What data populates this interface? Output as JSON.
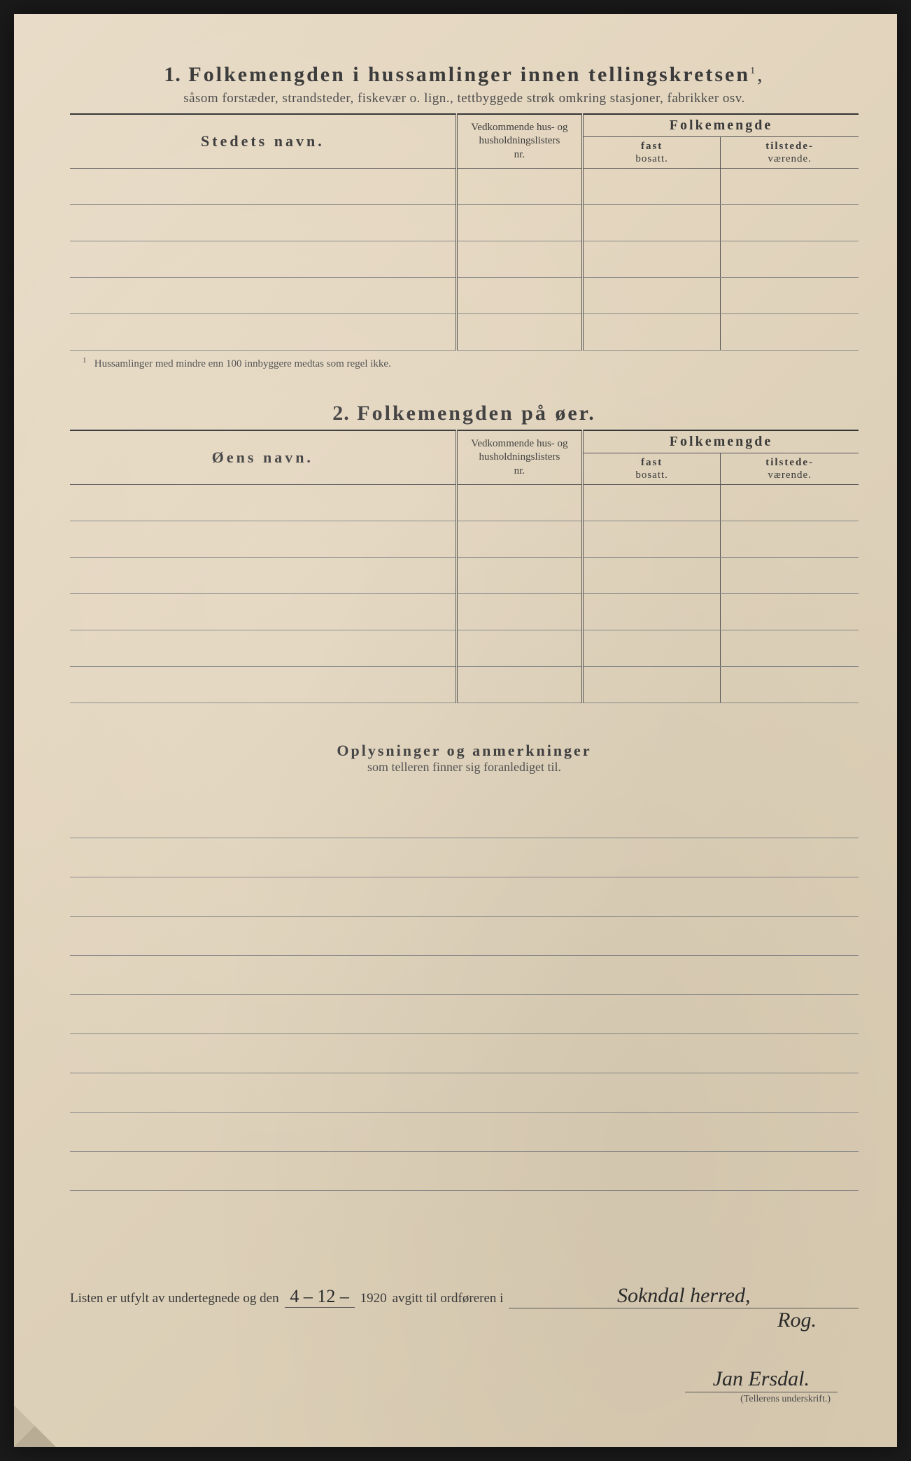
{
  "page": {
    "background_color": "#e4d6bf",
    "text_color": "#3a3a3a",
    "rule_color": "#888",
    "border_color": "#555"
  },
  "section1": {
    "number": "1.",
    "title": "Folkemengden i hussamlinger innen tellingskretsen",
    "title_sup": "1",
    "subtitle": "såsom forstæder, strandsteder, fiskevær o. lign., tettbyggede strøk omkring stasjoner, fabrikker osv.",
    "table": {
      "col1_header": "Stedets navn.",
      "col2_header_line1": "Vedkommende hus- og",
      "col2_header_line2": "husholdningslisters",
      "col2_header_line3": "nr.",
      "col3_header": "Folkemengde",
      "col3a_line1": "fast",
      "col3a_line2": "bosatt.",
      "col3b_line1": "tilstede-",
      "col3b_line2": "værende.",
      "row_count": 5,
      "col_widths_pct": [
        49,
        16,
        17.5,
        17.5
      ]
    },
    "footnote_num": "1",
    "footnote": "Hussamlinger med mindre enn 100 innbyggere medtas som regel ikke."
  },
  "section2": {
    "number": "2.",
    "title": "Folkemengden på øer.",
    "table": {
      "col1_header": "Øens navn.",
      "col2_header_line1": "Vedkommende hus- og",
      "col2_header_line2": "husholdningslisters",
      "col2_header_line3": "nr.",
      "col3_header": "Folkemengde",
      "col3a_line1": "fast",
      "col3a_line2": "bosatt.",
      "col3b_line1": "tilstede-",
      "col3b_line2": "værende.",
      "row_count": 6,
      "col_widths_pct": [
        49,
        16,
        17.5,
        17.5
      ]
    }
  },
  "oplysninger": {
    "title": "Oplysninger og anmerkninger",
    "subtitle": "som telleren finner sig foranlediget til.",
    "line_count": 10
  },
  "signature": {
    "prefix": "Listen er utfylt av undertegnede og den",
    "date_handwritten": "4 – 12 –",
    "year": "1920",
    "middle": "avgitt til ordføreren i",
    "place_handwritten": "Sokndal herred,",
    "place_line2": "Rog.",
    "name_handwritten": "Jan Ersdal.",
    "caption": "(Tellerens underskrift.)"
  }
}
